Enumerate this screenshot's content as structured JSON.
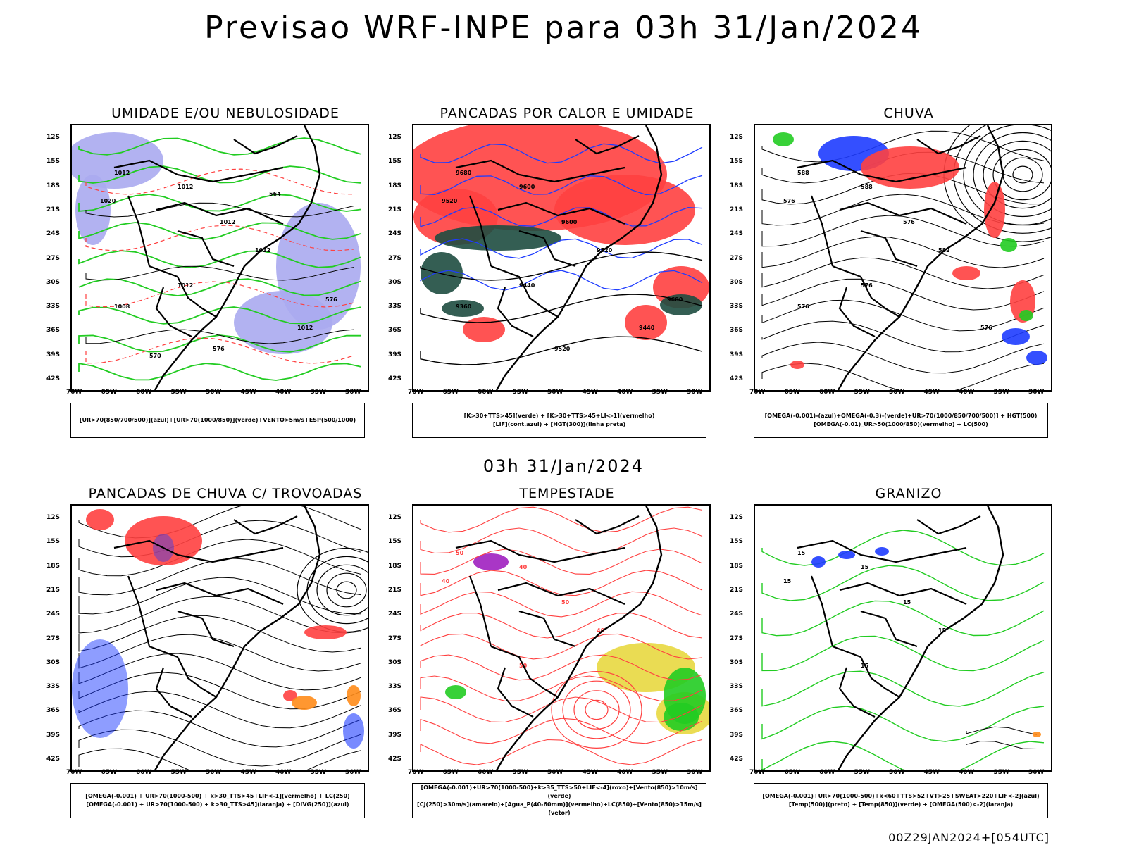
{
  "title": "Previsao WRF-INPE  para 03h 31/Jan/2024",
  "mid_date": "03h 31/Jan/2024",
  "footer": "00Z29JAN2024+[054UTC]",
  "lat_ticks": [
    "12S",
    "15S",
    "18S",
    "21S",
    "24S",
    "27S",
    "30S",
    "33S",
    "36S",
    "39S",
    "42S"
  ],
  "lon_ticks": [
    "70W",
    "65W",
    "60W",
    "55W",
    "50W",
    "45W",
    "40W",
    "35W",
    "30W"
  ],
  "panels": [
    {
      "title": "UMIDADE E/OU NEBULOSIDADE",
      "legend": [
        "[UR>70(850/700/500)](azul)+[UR>70(1000/850)](verde)+VENTO>5m/s+ESP(500/1000)"
      ],
      "labels": [
        "1012",
        "1012",
        "1020",
        "1012",
        "1012",
        "1012",
        "1008",
        "1012",
        "576",
        "576",
        "570",
        "564"
      ]
    },
    {
      "title": "PANCADAS POR CALOR E UMIDADE",
      "legend": [
        "[K>30+TTS>45](verde) + [K>30+TTS>45+LI<-1](vermelho)",
        "[LIF](cont.azul) + [HGT(300)](linha preta)"
      ],
      "labels": [
        "9680",
        "9600",
        "9520",
        "9600",
        "9520",
        "9440",
        "9360",
        "9440",
        "9520",
        "9600"
      ]
    },
    {
      "title": "CHUVA",
      "legend": [
        "[OMEGA(-0.001)-(azul)+OMEGA(-0.3)-(verde)+UR>70(1000/850/700/500)] + HGT(500)",
        "[OMEGA(-0.01)_UR>50(1000/850)(vermelho) + LC(500)"
      ],
      "labels": [
        "588",
        "588",
        "576",
        "576",
        "582",
        "576",
        "576",
        "576"
      ]
    },
    {
      "title": "PANCADAS DE CHUVA C/ TROVOADAS",
      "legend": [
        "[OMEGA(-0.001) + UR>70(1000-500) + k>30_TTS>45+LIF<-1](vermelho) + LC(250)",
        "[OMEGA(-0.001) + UR>70(1000-500) + k>30_TTS>45](laranja) + [DIVG(250)](azul)"
      ],
      "labels": []
    },
    {
      "title": "TEMPESTADE",
      "legend": [
        "[OMEGA(-0.001)+UR>70(1000-500)+k>35_TTS>50+LIF<-4](roxo)+[Vento(850)>10m/s](verde)",
        "[CJ(250)>30m/s](amarelo)+[Agua_P(40-60mm)](vermelho)+LC(850)+[Vento(850)>15m/s](vetor)"
      ],
      "labels": [
        "50",
        "40",
        "40",
        "50",
        "40",
        "50"
      ]
    },
    {
      "title": "GRANIZO",
      "legend": [
        "[OMEGA(-0.001)+UR>70(1000-500)+k<60+TTS>52+VT>25+SWEAT>220+LIF<-2](azul)",
        "[Temp(500)](preto) + [Temp(850)](verde) + [OMEGA(500)<-2](laranja)"
      ],
      "labels": [
        "15",
        "15",
        "15",
        "15",
        "15",
        "15"
      ]
    }
  ],
  "colors": {
    "blue_fill": "#aaaaf0",
    "green": "#22cc22",
    "red": "#ff4040",
    "dark_green": "#1e4d40",
    "blue": "#1e3cff",
    "orange": "#ff8c1a",
    "purple": "#a020c0",
    "yellow": "#e8d840"
  }
}
